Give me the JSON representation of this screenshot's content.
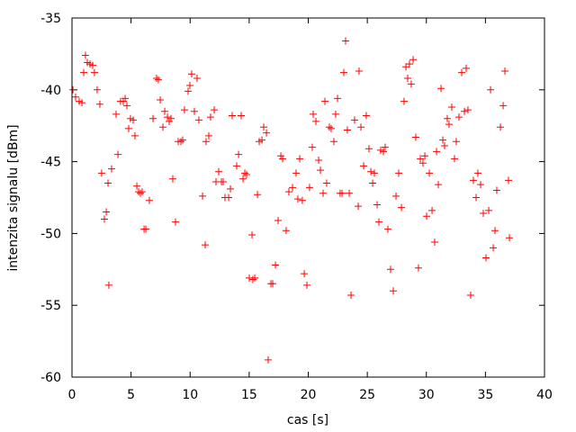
{
  "chart_data": {
    "type": "scatter",
    "title": "",
    "xlabel": "cas [s]",
    "ylabel": "intenzita signalu [dBm]",
    "xlim": [
      0,
      40
    ],
    "ylim": [
      -60,
      -35
    ],
    "xticks": [
      0,
      5,
      10,
      15,
      20,
      25,
      30,
      35,
      40
    ],
    "yticks": [
      -60,
      -55,
      -50,
      -45,
      -40,
      -35
    ],
    "grid": false,
    "marker": "plus",
    "color": "#ff0000",
    "series": [
      {
        "x": [
          0.08,
          0.3,
          0.61,
          0.84,
          0.99,
          1.14,
          1.3,
          1.52,
          1.75,
          1.9,
          2.13,
          2.36,
          2.51,
          2.74,
          2.9,
          3.05,
          3.12,
          3.35,
          3.73,
          3.89,
          4.11,
          4.34,
          4.5,
          4.65,
          4.8,
          4.95,
          5.18,
          5.33,
          5.49,
          5.64,
          5.79,
          5.94,
          6.1,
          6.25,
          6.55,
          6.86,
          7.16,
          7.31,
          7.47,
          7.7,
          7.85,
          8.08,
          8.23,
          8.38,
          8.53,
          8.76,
          8.99,
          9.22,
          9.37,
          9.52,
          9.83,
          9.98,
          10.13,
          10.36,
          10.59,
          10.74,
          11.05,
          11.28,
          11.35,
          11.58,
          11.73,
          12.04,
          12.19,
          12.42,
          12.65,
          12.8,
          12.95,
          13.26,
          13.41,
          13.56,
          13.94,
          14.1,
          14.32,
          14.48,
          14.63,
          14.78,
          15.01,
          15.24,
          15.31,
          15.47,
          15.7,
          15.85,
          16.08,
          16.23,
          16.46,
          16.61,
          16.84,
          16.99,
          17.22,
          17.45,
          17.68,
          17.83,
          18.13,
          18.36,
          18.67,
          18.97,
          19.12,
          19.28,
          19.5,
          19.66,
          19.89,
          20.11,
          20.34,
          20.42,
          20.65,
          20.88,
          21.03,
          21.26,
          21.41,
          21.56,
          21.79,
          21.94,
          22.17,
          22.32,
          22.48,
          22.7,
          22.86,
          23.01,
          23.16,
          23.31,
          23.47,
          23.62,
          23.92,
          24.23,
          24.3,
          24.46,
          24.69,
          24.91,
          25.14,
          25.3,
          25.45,
          25.6,
          25.83,
          25.98,
          26.13,
          26.36,
          26.51,
          26.74,
          26.97,
          27.2,
          27.43,
          27.66,
          27.89,
          28.11,
          28.27,
          28.42,
          28.57,
          28.72,
          28.88,
          29.1,
          29.33,
          29.49,
          29.71,
          29.87,
          30.02,
          30.25,
          30.48,
          30.7,
          30.86,
          31.01,
          31.24,
          31.39,
          31.54,
          31.77,
          31.92,
          32.15,
          32.38,
          32.53,
          32.76,
          32.99,
          33.22,
          33.37,
          33.52,
          33.75,
          33.98,
          34.21,
          34.36,
          34.59,
          34.82,
          35.05,
          35.28,
          35.43,
          35.66,
          35.81,
          35.96,
          36.27,
          36.5,
          36.65,
          36.95,
          37.03
        ],
        "y": [
          -40.0,
          -40.5,
          -40.8,
          -40.9,
          -38.8,
          -37.6,
          -38.1,
          -38.2,
          -38.3,
          -38.8,
          -40.0,
          -41.0,
          -45.8,
          -49.0,
          -48.5,
          -46.5,
          -53.6,
          -45.5,
          -41.7,
          -44.5,
          -40.8,
          -40.8,
          -40.6,
          -41.1,
          -42.7,
          -42.0,
          -42.1,
          -43.2,
          -46.7,
          -47.1,
          -47.2,
          -47.1,
          -49.7,
          -49.7,
          -47.7,
          -42.0,
          -39.2,
          -39.3,
          -40.7,
          -42.6,
          -41.5,
          -41.9,
          -42.2,
          -42.0,
          -46.2,
          -49.2,
          -43.6,
          -43.6,
          -43.5,
          -41.4,
          -40.1,
          -39.7,
          -38.9,
          -41.5,
          -39.2,
          -42.1,
          -47.4,
          -50.8,
          -43.6,
          -43.2,
          -41.9,
          -41.4,
          -46.4,
          -45.7,
          -46.4,
          -46.4,
          -47.5,
          -47.5,
          -46.9,
          -41.8,
          -45.3,
          -44.5,
          -41.8,
          -46.2,
          -45.8,
          -45.9,
          -53.1,
          -50.1,
          -53.2,
          -53.1,
          -47.3,
          -43.6,
          -43.5,
          -42.6,
          -43.0,
          -58.8,
          -53.5,
          -53.5,
          -52.2,
          -49.1,
          -44.6,
          -44.8,
          -49.8,
          -47.1,
          -46.8,
          -45.8,
          -47.6,
          -44.8,
          -47.7,
          -52.8,
          -53.6,
          -46.8,
          -44.0,
          -41.7,
          -42.2,
          -44.9,
          -45.6,
          -47.2,
          -40.8,
          -46.5,
          -42.6,
          -42.7,
          -43.6,
          -41.7,
          -40.6,
          -47.2,
          -47.2,
          -38.8,
          -36.6,
          -42.8,
          -47.2,
          -54.3,
          -42.1,
          -48.1,
          -38.7,
          -42.6,
          -45.3,
          -41.8,
          -44.1,
          -45.7,
          -46.5,
          -45.8,
          -48.0,
          -49.2,
          -44.2,
          -44.3,
          -44.0,
          -49.7,
          -52.5,
          -54.0,
          -47.4,
          -45.8,
          -48.2,
          -40.8,
          -38.4,
          -39.2,
          -38.2,
          -39.6,
          -37.9,
          -43.3,
          -52.4,
          -44.8,
          -45.1,
          -44.6,
          -48.8,
          -45.8,
          -48.4,
          -50.6,
          -44.3,
          -46.6,
          -39.9,
          -43.5,
          -43.9,
          -42.0,
          -42.4,
          -41.2,
          -44.8,
          -43.6,
          -41.9,
          -38.8,
          -41.5,
          -38.5,
          -41.4,
          -54.3,
          -46.3,
          -47.5,
          -45.8,
          -46.6,
          -48.6,
          -51.7,
          -48.4,
          -40.0,
          -51.0,
          -49.8,
          -47.0,
          -42.6,
          -41.1,
          -38.7,
          -46.3,
          -50.3
        ]
      }
    ]
  }
}
